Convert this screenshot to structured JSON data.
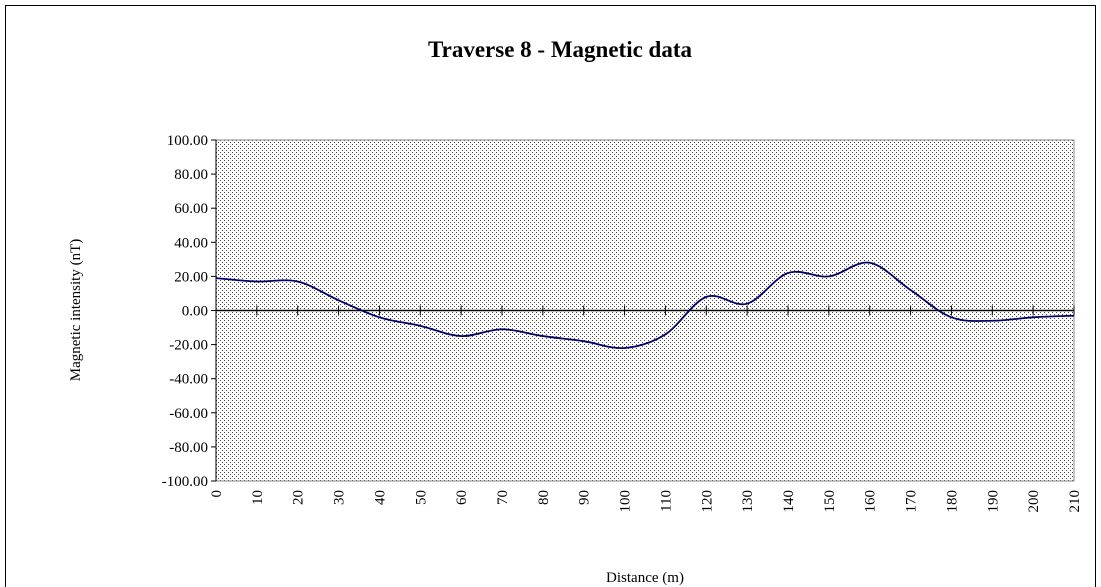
{
  "chart_data": {
    "type": "line",
    "title": "Traverse 8 - Magnetic data",
    "x_label": "Distance (m)",
    "y_label": "Magnetic intensity (nT)",
    "x": [
      0,
      10,
      20,
      30,
      40,
      50,
      60,
      70,
      80,
      90,
      100,
      110,
      120,
      130,
      140,
      150,
      160,
      170,
      180,
      190,
      200,
      210
    ],
    "series": [
      {
        "name": "Magnetic intensity",
        "color": "#000066",
        "values": [
          19,
          17,
          17,
          6,
          -4,
          -9,
          -15,
          -11,
          -15,
          -18,
          -22,
          -14,
          8,
          4,
          22,
          20,
          28,
          12,
          -4,
          -6,
          -4,
          -3
        ]
      }
    ],
    "xlim": [
      0,
      210
    ],
    "xticks": [
      0,
      10,
      20,
      30,
      40,
      50,
      60,
      70,
      80,
      90,
      100,
      110,
      120,
      130,
      140,
      150,
      160,
      170,
      180,
      190,
      200,
      210
    ],
    "ylim": [
      -100,
      100
    ],
    "yticks": [
      {
        "value": -100,
        "label": "-100.00"
      },
      {
        "value": -80,
        "label": "-80.00"
      },
      {
        "value": -60,
        "label": "-60.00"
      },
      {
        "value": -40,
        "label": "-40.00"
      },
      {
        "value": -20,
        "label": "-20.00"
      },
      {
        "value": 0,
        "label": "0.00"
      },
      {
        "value": 20,
        "label": "20.00"
      },
      {
        "value": 40,
        "label": "40.00"
      },
      {
        "value": 60,
        "label": "60.00"
      },
      {
        "value": 80,
        "label": "80.00"
      },
      {
        "value": 100,
        "label": "100.00"
      }
    ],
    "smooth": true
  }
}
